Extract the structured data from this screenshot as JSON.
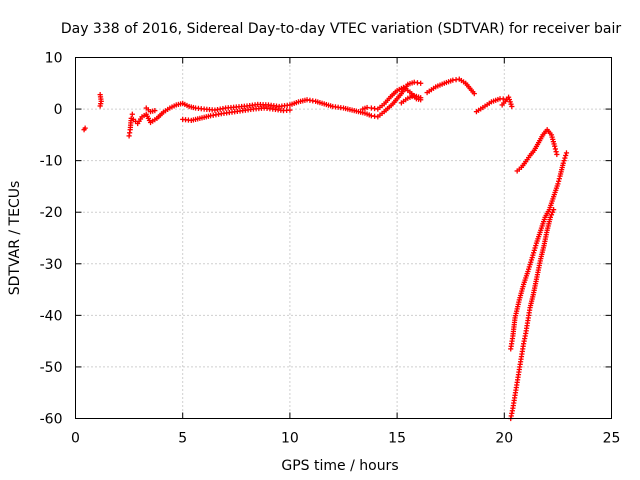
{
  "chart_data": {
    "type": "scatter",
    "title": "Day 338 of 2016, Sidereal Day-to-day VTEC variation (SDTVAR) for receiver bair",
    "xlabel": "GPS time / hours",
    "ylabel": "SDTVAR / TECUs",
    "xlim": [
      0,
      25
    ],
    "ylim": [
      -60,
      10
    ],
    "xticks": [
      0,
      5,
      10,
      15,
      20,
      25
    ],
    "yticks": [
      10,
      0,
      -10,
      -20,
      -30,
      -40,
      -50,
      -60
    ],
    "grid": true,
    "marker": "plus",
    "series_color": "#ff0000",
    "series": [
      {
        "name": "SDTVAR",
        "segments": [
          [
            [
              0.4,
              -4.0
            ],
            [
              0.45,
              -3.7
            ]
          ],
          [
            [
              1.15,
              2.8
            ],
            [
              1.2,
              1.5
            ],
            [
              1.15,
              0.6
            ]
          ],
          [
            [
              2.5,
              -5.2
            ],
            [
              2.55,
              -4.0
            ],
            [
              2.6,
              -1.8
            ],
            [
              2.65,
              -1.0
            ]
          ],
          [
            [
              2.7,
              -2.0
            ],
            [
              2.9,
              -2.8
            ],
            [
              3.1,
              -1.5
            ],
            [
              3.3,
              -1.0
            ],
            [
              3.5,
              -2.6
            ],
            [
              3.8,
              -1.8
            ],
            [
              4.1,
              -0.6
            ],
            [
              4.4,
              0.2
            ],
            [
              4.7,
              0.8
            ],
            [
              5.0,
              1.1
            ],
            [
              5.3,
              0.5
            ],
            [
              5.6,
              0.2
            ],
            [
              6.0,
              0.0
            ],
            [
              6.5,
              -0.2
            ],
            [
              7.0,
              0.2
            ],
            [
              7.5,
              0.4
            ],
            [
              8.0,
              0.6
            ],
            [
              8.5,
              0.9
            ],
            [
              9.0,
              0.8
            ],
            [
              9.5,
              0.5
            ],
            [
              10.0,
              0.8
            ],
            [
              10.4,
              1.4
            ],
            [
              10.8,
              1.8
            ],
            [
              11.2,
              1.5
            ],
            [
              11.6,
              1.0
            ],
            [
              12.0,
              0.5
            ],
            [
              12.5,
              0.2
            ],
            [
              13.0,
              -0.3
            ],
            [
              13.5,
              -0.8
            ],
            [
              13.8,
              -1.3
            ],
            [
              14.1,
              -1.5
            ],
            [
              14.4,
              -0.5
            ],
            [
              14.8,
              1.0
            ],
            [
              15.2,
              3.0
            ],
            [
              15.5,
              4.8
            ],
            [
              15.8,
              5.2
            ],
            [
              16.1,
              5.0
            ]
          ],
          [
            [
              3.3,
              0.2
            ],
            [
              3.5,
              -0.5
            ],
            [
              3.7,
              -0.3
            ]
          ],
          [
            [
              5.0,
              -2.0
            ],
            [
              5.4,
              -2.2
            ],
            [
              5.8,
              -1.8
            ],
            [
              6.3,
              -1.3
            ],
            [
              6.8,
              -0.9
            ],
            [
              7.3,
              -0.6
            ],
            [
              7.8,
              -0.3
            ],
            [
              8.3,
              0.0
            ],
            [
              8.8,
              0.2
            ],
            [
              9.2,
              0.0
            ],
            [
              9.7,
              -0.3
            ],
            [
              10.0,
              -0.2
            ]
          ],
          [
            [
              13.4,
              0.0
            ],
            [
              13.6,
              0.3
            ],
            [
              13.8,
              0.2
            ],
            [
              14.1,
              0.0
            ],
            [
              14.4,
              1.0
            ],
            [
              14.7,
              2.4
            ],
            [
              15.0,
              3.6
            ],
            [
              15.3,
              4.2
            ],
            [
              15.6,
              3.3
            ],
            [
              15.9,
              2.0
            ],
            [
              16.1,
              1.8
            ]
          ],
          [
            [
              15.2,
              1.2
            ],
            [
              15.5,
              2.1
            ],
            [
              15.8,
              2.6
            ],
            [
              16.1,
              2.2
            ]
          ],
          [
            [
              16.4,
              3.2
            ],
            [
              16.8,
              4.3
            ],
            [
              17.2,
              5.0
            ],
            [
              17.6,
              5.6
            ],
            [
              17.9,
              5.8
            ],
            [
              18.2,
              5.0
            ],
            [
              18.4,
              4.0
            ],
            [
              18.6,
              3.0
            ]
          ],
          [
            [
              18.7,
              -0.5
            ],
            [
              19.0,
              0.3
            ],
            [
              19.4,
              1.4
            ],
            [
              19.8,
              2.0
            ],
            [
              20.1,
              1.9
            ]
          ],
          [
            [
              19.9,
              0.8
            ],
            [
              20.2,
              2.3
            ],
            [
              20.35,
              0.5
            ]
          ],
          [
            [
              20.6,
              -12.0
            ],
            [
              20.8,
              -11.3
            ],
            [
              21.0,
              -10.2
            ],
            [
              21.2,
              -9.0
            ],
            [
              21.4,
              -8.0
            ],
            [
              21.6,
              -6.5
            ],
            [
              21.8,
              -5.0
            ],
            [
              22.0,
              -4.0
            ],
            [
              22.2,
              -5.0
            ],
            [
              22.35,
              -7.2
            ],
            [
              22.45,
              -8.8
            ]
          ],
          [
            [
              20.3,
              -46.5
            ],
            [
              20.4,
              -44.0
            ],
            [
              20.5,
              -40.5
            ],
            [
              20.7,
              -37.0
            ],
            [
              20.9,
              -34.0
            ],
            [
              21.1,
              -31.5
            ],
            [
              21.3,
              -28.8
            ],
            [
              21.5,
              -26.0
            ],
            [
              21.7,
              -23.5
            ],
            [
              21.9,
              -21.0
            ],
            [
              22.1,
              -19.5
            ],
            [
              22.3,
              -17.0
            ],
            [
              22.5,
              -14.5
            ],
            [
              22.6,
              -13.0
            ],
            [
              22.75,
              -10.5
            ],
            [
              22.9,
              -8.5
            ]
          ],
          [
            [
              20.3,
              -60.0
            ],
            [
              20.4,
              -58.0
            ],
            [
              20.5,
              -55.5
            ],
            [
              20.6,
              -53.0
            ],
            [
              20.7,
              -50.5
            ],
            [
              20.8,
              -48.0
            ],
            [
              20.9,
              -45.5
            ],
            [
              21.0,
              -43.5
            ],
            [
              21.1,
              -41.0
            ],
            [
              21.2,
              -38.5
            ],
            [
              21.35,
              -36.0
            ],
            [
              21.5,
              -33.0
            ],
            [
              21.7,
              -29.0
            ],
            [
              21.85,
              -26.5
            ],
            [
              22.0,
              -23.5
            ],
            [
              22.15,
              -21.0
            ],
            [
              22.3,
              -19.5
            ]
          ]
        ]
      }
    ]
  }
}
